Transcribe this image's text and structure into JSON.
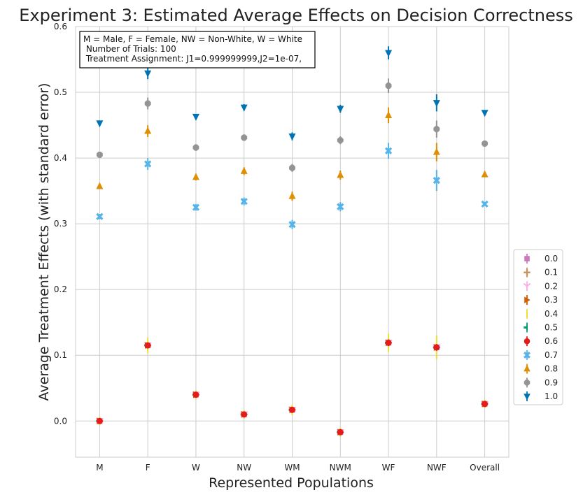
{
  "chart_data": {
    "type": "scatter",
    "title": "Experiment 3: Estimated Average Effects on Decision Correctness",
    "xlabel": "Represented Populations",
    "ylabel": "Average Treatment Effects (with standard error)",
    "categories": [
      "M",
      "F",
      "W",
      "NW",
      "WM",
      "NWM",
      "WF",
      "NWF",
      "Overall"
    ],
    "ylim": [
      -0.055,
      0.6
    ],
    "yticks": [
      "0.0",
      "0.1",
      "0.2",
      "0.3",
      "0.4",
      "0.5",
      "0.6"
    ],
    "grid": true,
    "legend_position": "right",
    "annotation": [
      "M = Male, F = Female, NW = Non-White, W = White",
      " Number of Trials: 100",
      " Treatment Assignment: J1=0.999999999,J2=1e-07,"
    ],
    "series": [
      {
        "name": "0.0",
        "marker": "square",
        "color": "#cc78bc",
        "values": [
          0.0,
          0.115,
          0.04,
          0.01,
          0.017,
          -0.017,
          0.119,
          0.112,
          0.026
        ],
        "errors": [
          0.002,
          0.004,
          0.003,
          0.002,
          0.003,
          0.003,
          0.005,
          0.005,
          0.002
        ]
      },
      {
        "name": "0.1",
        "marker": "plus",
        "color": "#ca9161",
        "values": [
          0.0,
          0.115,
          0.04,
          0.01,
          0.017,
          -0.017,
          0.119,
          0.112,
          0.026
        ],
        "errors": [
          0.002,
          0.004,
          0.003,
          0.002,
          0.003,
          0.003,
          0.005,
          0.005,
          0.002
        ]
      },
      {
        "name": "0.2",
        "marker": "tri_down",
        "color": "#fbafe4",
        "values": [
          0.0,
          0.115,
          0.04,
          0.01,
          0.017,
          -0.017,
          0.119,
          0.112,
          0.026
        ],
        "errors": [
          0.002,
          0.004,
          0.003,
          0.002,
          0.003,
          0.003,
          0.005,
          0.005,
          0.002
        ]
      },
      {
        "name": "0.3",
        "marker": "triangle_right",
        "color": "#d55e00",
        "values": [
          0.0,
          0.115,
          0.04,
          0.01,
          0.017,
          -0.017,
          0.119,
          0.112,
          0.026
        ],
        "errors": [
          0.002,
          0.004,
          0.003,
          0.002,
          0.003,
          0.003,
          0.005,
          0.005,
          0.002
        ]
      },
      {
        "name": "0.4",
        "marker": "vline",
        "color": "#ece133",
        "values": [
          0.0,
          0.115,
          0.04,
          0.01,
          0.017,
          -0.017,
          0.119,
          0.112,
          0.026
        ],
        "errors": [
          0.004,
          0.012,
          0.006,
          0.005,
          0.008,
          0.007,
          0.014,
          0.018,
          0.004
        ]
      },
      {
        "name": "0.5",
        "marker": "tick_left",
        "color": "#029e73",
        "values": [
          0.0,
          0.115,
          0.04,
          0.01,
          0.017,
          -0.017,
          0.119,
          0.112,
          0.026
        ],
        "errors": [
          0.002,
          0.004,
          0.003,
          0.002,
          0.003,
          0.003,
          0.005,
          0.005,
          0.002
        ]
      },
      {
        "name": "0.6",
        "marker": "circle",
        "color": "#e41a1c",
        "values": [
          0.0,
          0.115,
          0.04,
          0.01,
          0.017,
          -0.017,
          0.119,
          0.112,
          0.026
        ],
        "errors": [
          0.002,
          0.004,
          0.003,
          0.002,
          0.003,
          0.003,
          0.005,
          0.005,
          0.002
        ]
      },
      {
        "name": "0.7",
        "marker": "x",
        "color": "#56b4e9",
        "values": [
          0.311,
          0.391,
          0.325,
          0.334,
          0.299,
          0.326,
          0.411,
          0.366,
          0.33
        ],
        "errors": [
          0.004,
          0.009,
          0.005,
          0.006,
          0.007,
          0.007,
          0.012,
          0.016,
          0.003
        ]
      },
      {
        "name": "0.8",
        "marker": "triangle_up",
        "color": "#de8f05",
        "values": [
          0.357,
          0.441,
          0.371,
          0.38,
          0.342,
          0.374,
          0.465,
          0.409,
          0.375
        ],
        "errors": [
          0.004,
          0.009,
          0.005,
          0.006,
          0.007,
          0.007,
          0.012,
          0.014,
          0.003
        ]
      },
      {
        "name": "0.9",
        "marker": "octagon",
        "color": "#949494",
        "values": [
          0.405,
          0.483,
          0.416,
          0.431,
          0.385,
          0.427,
          0.51,
          0.444,
          0.422
        ],
        "errors": [
          0.004,
          0.009,
          0.005,
          0.005,
          0.006,
          0.006,
          0.011,
          0.013,
          0.003
        ]
      },
      {
        "name": "1.0",
        "marker": "triangle_down",
        "color": "#0173b2",
        "values": [
          0.453,
          0.529,
          0.463,
          0.477,
          0.433,
          0.475,
          0.56,
          0.484,
          0.469
        ],
        "errors": [
          0.003,
          0.009,
          0.004,
          0.005,
          0.006,
          0.006,
          0.01,
          0.013,
          0.003
        ]
      }
    ]
  }
}
